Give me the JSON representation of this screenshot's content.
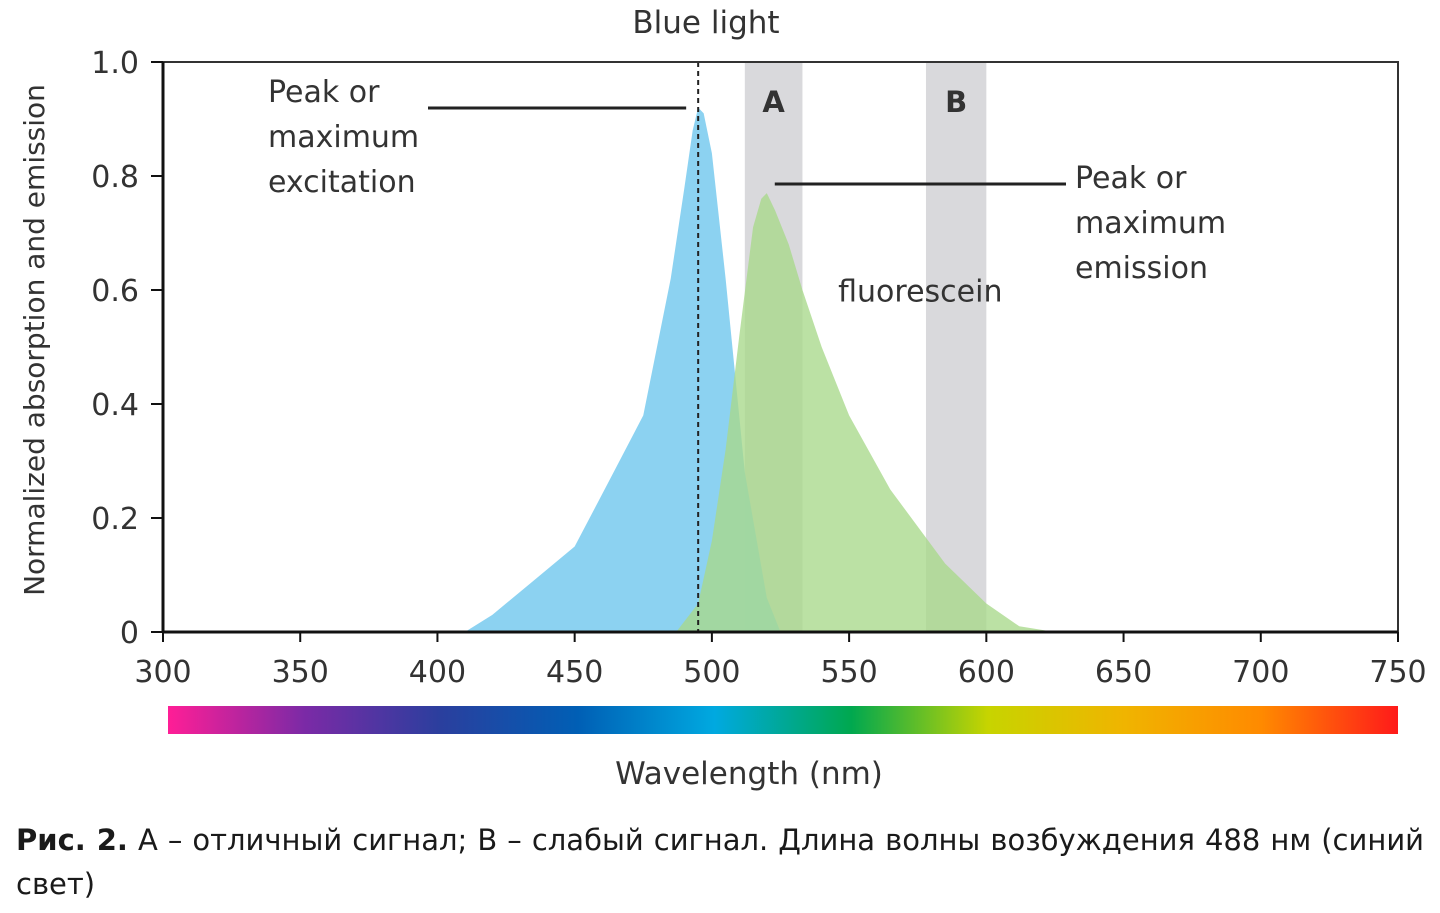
{
  "chart_data": {
    "type": "area",
    "title": "Blue light",
    "xlabel": "Wavelength (nm)",
    "ylabel": "Normalized absorption and emission",
    "xlim": [
      300,
      750
    ],
    "ylim": [
      0,
      1.0
    ],
    "x_ticks": [
      "300",
      "350",
      "400",
      "450",
      "500",
      "550",
      "600",
      "650",
      "700",
      "750"
    ],
    "y_ticks": [
      "0",
      "0.2",
      "0.4",
      "0.6",
      "0.8",
      "1.0"
    ],
    "grid": false,
    "series": [
      {
        "name": "",
        "color": "#86d0f0",
        "x": [
          410,
          420,
          435,
          450,
          462,
          475,
          485,
          490,
          493,
          495,
          497,
          500,
          505,
          512,
          520,
          525
        ],
        "y": [
          0.0,
          0.03,
          0.09,
          0.15,
          0.26,
          0.38,
          0.62,
          0.78,
          0.88,
          0.92,
          0.91,
          0.84,
          0.62,
          0.28,
          0.06,
          0.0
        ]
      },
      {
        "name": "fluorescein",
        "color": "#a8d98a",
        "x": [
          487,
          495,
          500,
          505,
          510,
          515,
          518,
          520,
          523,
          528,
          533,
          540,
          550,
          565,
          585,
          600,
          612,
          625
        ],
        "y": [
          0.0,
          0.05,
          0.16,
          0.32,
          0.52,
          0.71,
          0.76,
          0.77,
          0.74,
          0.68,
          0.6,
          0.5,
          0.38,
          0.25,
          0.12,
          0.05,
          0.01,
          0.0
        ]
      }
    ],
    "bands": [
      {
        "label": "A",
        "x0": 512,
        "x1": 533,
        "color": "#d9d9dc"
      },
      {
        "label": "B",
        "x0": 578,
        "x1": 600,
        "color": "#d9d9dc"
      }
    ],
    "reference_line": {
      "x": 495,
      "style": "dashed"
    },
    "annotations": [
      {
        "lines": [
          "Peak or",
          "maximum",
          "excitation"
        ],
        "target_x": 495,
        "target_y": 0.92
      },
      {
        "lines": [
          "Peak or",
          "maximum",
          "emission"
        ],
        "target_x": 520,
        "target_y": 0.77
      }
    ],
    "series_label": "fluorescein",
    "spectrum_bar": [
      "#ff1e96",
      "#7b2aa6",
      "#2a3f9e",
      "#005fb5",
      "#00a9e0",
      "#00a84f",
      "#c7d400",
      "#f0b400",
      "#ff8a00",
      "#ff1a1a"
    ]
  },
  "caption": {
    "lead": "Рис. 2.",
    "text": " А – отличный сигнал; В – слабый сигнал. Длина волны возбуждения 488 нм (синий свет)"
  }
}
